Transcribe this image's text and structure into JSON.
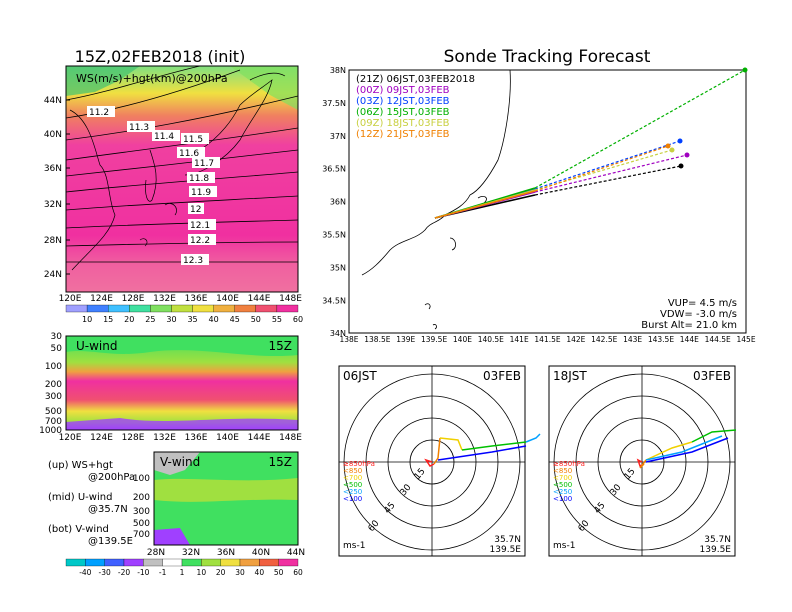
{
  "left": {
    "title": "15Z,02FEB2018 (init)",
    "map_label": "WS(m/s)+hgt(km)@200hPa",
    "lat_ticks": [
      "44N",
      "40N",
      "36N",
      "32N",
      "28N",
      "24N"
    ],
    "lon_ticks": [
      "120E",
      "124E",
      "128E",
      "132E",
      "136E",
      "140E",
      "144E",
      "148E"
    ],
    "contour_labels": [
      "11.2",
      "11.3",
      "11.4",
      "11.5",
      "11.6",
      "11.7",
      "11.8",
      "11.9",
      "12",
      "12.1",
      "12.2",
      "12.3"
    ],
    "ws_colorbar": [
      "10",
      "15",
      "20",
      "25",
      "30",
      "35",
      "40",
      "45",
      "50",
      "55",
      "60"
    ],
    "uwind_label": "U-wind",
    "uwind_time": "15Z",
    "pressure_ticks": [
      "30",
      "50",
      "100",
      "200",
      "300",
      "500",
      "700",
      "1000"
    ],
    "vwind_label": "V-wind",
    "vwind_time": "15Z",
    "vwind_pressure_ticks": [
      "100",
      "200",
      "300",
      "500",
      "700"
    ],
    "vwind_lat_ticks": [
      "28N",
      "32N",
      "36N",
      "40N",
      "44N"
    ],
    "wind_colorbar": [
      "-40",
      "-30",
      "-20",
      "-10",
      "-1",
      "1",
      "10",
      "20",
      "30",
      "40",
      "50",
      "60"
    ],
    "legend_up": [
      "(up) WS+hgt",
      "@200hPa"
    ],
    "legend_mid": [
      "(mid) U-wind",
      "@35.7N"
    ],
    "legend_bot": [
      "(bot) V-wind",
      "@139.5E"
    ],
    "colors": {
      "ws_scale": [
        "#a0a0ff",
        "#4080ff",
        "#40c0ff",
        "#40e0a0",
        "#80e060",
        "#c0e040",
        "#f0e040",
        "#f0b040",
        "#f08040",
        "#f05070",
        "#f030a0"
      ],
      "wind_scale": [
        "#00c8c8",
        "#00a0ff",
        "#4060ff",
        "#a040ff",
        "#c0c0c0",
        "#ffffff",
        "#40e060",
        "#a0e040",
        "#f0e040",
        "#f0a040",
        "#f06040",
        "#f030a0"
      ]
    }
  },
  "right": {
    "title": "Sonde Tracking Forecast",
    "lat_ticks": [
      "38N",
      "37.5N",
      "37N",
      "36.5N",
      "36N",
      "35.5N",
      "35N",
      "34.5N",
      "34N"
    ],
    "lon_ticks": [
      "138E",
      "138.5E",
      "139E",
      "139.5E",
      "140E",
      "140.5E",
      "141E",
      "141.5E",
      "142E",
      "142.5E",
      "143E",
      "143.5E",
      "144E",
      "144.5E",
      "145E"
    ],
    "legend": [
      {
        "text": "(21Z) 06JST,03FEB2018",
        "color": "#000000"
      },
      {
        "text": "(00Z) 09JST,03FEB",
        "color": "#a000c0"
      },
      {
        "text": "(03Z) 12JST,03FEB",
        "color": "#0040ff"
      },
      {
        "text": "(06Z) 15JST,03FEB",
        "color": "#00b000"
      },
      {
        "text": "(09Z) 18JST,03FEB",
        "color": "#c8d040"
      },
      {
        "text": "(12Z) 21JST,03FEB",
        "color": "#f08000"
      }
    ],
    "info": [
      "VUP= 4.5 m/s",
      "VDW= -3.0 m/s",
      "Burst Alt= 21.0 km"
    ],
    "hodo1": {
      "left": "06JST",
      "right": "03FEB",
      "loc": [
        "35.7N",
        "139.5E"
      ],
      "unit": "ms-1"
    },
    "hodo2": {
      "left": "18JST",
      "right": "03FEB",
      "loc": [
        "35.7N",
        "139.5E"
      ],
      "unit": "ms-1"
    },
    "ring_labels": [
      "15",
      "30",
      "45",
      "60"
    ],
    "hodo_legend": [
      {
        "text": "≥850hPa",
        "color": "#ff2020"
      },
      {
        "text": "<850",
        "color": "#f08000"
      },
      {
        "text": "<700",
        "color": "#f0d000"
      },
      {
        "text": "<500",
        "color": "#00c000"
      },
      {
        "text": "<250",
        "color": "#00a0ff"
      },
      {
        "text": "<100",
        "color": "#0000ff"
      }
    ]
  }
}
